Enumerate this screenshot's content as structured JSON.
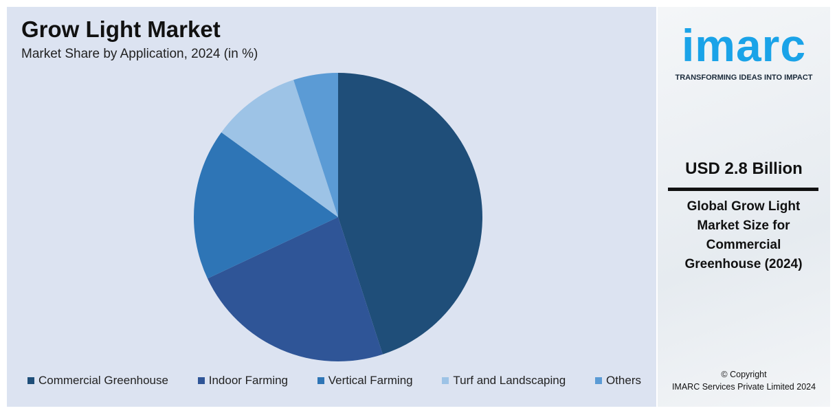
{
  "chart_data": {
    "type": "pie",
    "title": "Grow Light Market",
    "subtitle": "Market Share by Application, 2024 (in %)",
    "categories": [
      "Commercial Greenhouse",
      "Indoor Farming",
      "Vertical Farming",
      "Turf and Landscaping",
      "Others"
    ],
    "values": [
      45,
      23,
      17,
      10,
      5
    ],
    "colors": [
      "#1f4e79",
      "#2f5597",
      "#2e75b6",
      "#9dc3e6",
      "#5b9bd5"
    ]
  },
  "side_panel": {
    "logo": "imarc",
    "tagline": "TRANSFORMING IDEAS INTO IMPACT",
    "headline_value": "USD 2.8 Billion",
    "description": "Global Grow Light Market Size for Commercial Greenhouse (2024)",
    "copyright": [
      "© Copyright",
      "IMARC Services Private Limited 2024"
    ]
  }
}
